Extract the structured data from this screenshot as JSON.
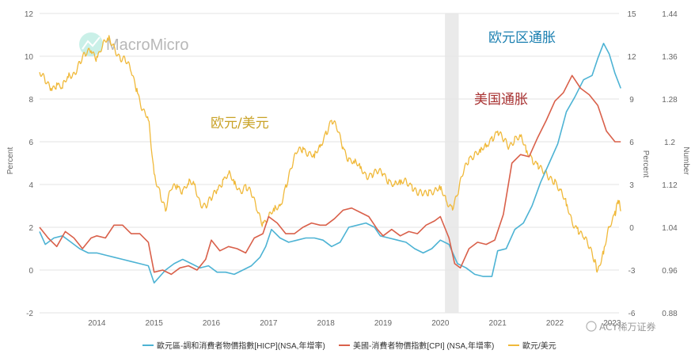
{
  "watermark": "MacroMicro",
  "corner_brand": "ACY稀万证券",
  "chart_data": {
    "type": "line",
    "x_ticks": [
      "2014",
      "2015",
      "2016",
      "2017",
      "2018",
      "2019",
      "2020",
      "2021",
      "2022",
      "2023"
    ],
    "axes": {
      "left": {
        "label": "Percent",
        "ticks": [
          12,
          10,
          8,
          6,
          4,
          2,
          0,
          -2
        ],
        "range": [
          -2,
          12
        ]
      },
      "right1": {
        "label": "Percent",
        "ticks": [
          15,
          12,
          9,
          6,
          3,
          0,
          -3,
          -6
        ],
        "range": [
          -6,
          15
        ]
      },
      "right2": {
        "label": "Number",
        "ticks": [
          "1.44",
          "1.36",
          "1.28",
          "1.2",
          "1.12",
          "1.04",
          "0.96",
          "0.88"
        ],
        "range": [
          0.88,
          1.44
        ]
      }
    },
    "shaded_period": [
      "2020.08",
      "2020.32"
    ],
    "annotations": [
      {
        "text": "欧元区通胀",
        "color": "#1a7fb0"
      },
      {
        "text": "美国通胀",
        "color": "#a83232"
      },
      {
        "text": "欧元/美元",
        "color": "#c9a227"
      }
    ],
    "series": [
      {
        "name": "歐元區-調和消費者物價指數[HICP](NSA,年增率)",
        "axis": "left",
        "color": "#4db3d4",
        "points": [
          [
            2013.0,
            1.8
          ],
          [
            2013.1,
            1.2
          ],
          [
            2013.25,
            1.5
          ],
          [
            2013.4,
            1.6
          ],
          [
            2013.55,
            1.3
          ],
          [
            2013.7,
            1.0
          ],
          [
            2013.85,
            0.8
          ],
          [
            2014.0,
            0.8
          ],
          [
            2014.15,
            0.7
          ],
          [
            2014.3,
            0.6
          ],
          [
            2014.45,
            0.5
          ],
          [
            2014.6,
            0.4
          ],
          [
            2014.75,
            0.3
          ],
          [
            2014.9,
            0.2
          ],
          [
            2015.0,
            -0.6
          ],
          [
            2015.2,
            0.0
          ],
          [
            2015.35,
            0.3
          ],
          [
            2015.5,
            0.5
          ],
          [
            2015.65,
            0.3
          ],
          [
            2015.8,
            0.1
          ],
          [
            2015.95,
            0.2
          ],
          [
            2016.1,
            -0.1
          ],
          [
            2016.25,
            -0.1
          ],
          [
            2016.4,
            -0.2
          ],
          [
            2016.55,
            0.0
          ],
          [
            2016.7,
            0.2
          ],
          [
            2016.85,
            0.6
          ],
          [
            2016.95,
            1.1
          ],
          [
            2017.05,
            1.9
          ],
          [
            2017.2,
            1.5
          ],
          [
            2017.35,
            1.3
          ],
          [
            2017.5,
            1.4
          ],
          [
            2017.65,
            1.5
          ],
          [
            2017.8,
            1.5
          ],
          [
            2017.95,
            1.4
          ],
          [
            2018.1,
            1.1
          ],
          [
            2018.25,
            1.3
          ],
          [
            2018.4,
            2.0
          ],
          [
            2018.55,
            2.1
          ],
          [
            2018.7,
            2.2
          ],
          [
            2018.85,
            2.0
          ],
          [
            2018.95,
            1.6
          ],
          [
            2019.1,
            1.5
          ],
          [
            2019.25,
            1.4
          ],
          [
            2019.4,
            1.3
          ],
          [
            2019.55,
            1.0
          ],
          [
            2019.7,
            0.8
          ],
          [
            2019.85,
            1.0
          ],
          [
            2020.0,
            1.4
          ],
          [
            2020.15,
            1.2
          ],
          [
            2020.3,
            0.3
          ],
          [
            2020.45,
            0.1
          ],
          [
            2020.6,
            -0.2
          ],
          [
            2020.75,
            -0.3
          ],
          [
            2020.9,
            -0.3
          ],
          [
            2021.0,
            0.9
          ],
          [
            2021.15,
            1.0
          ],
          [
            2021.3,
            1.9
          ],
          [
            2021.45,
            2.2
          ],
          [
            2021.6,
            3.0
          ],
          [
            2021.75,
            4.1
          ],
          [
            2021.9,
            5.0
          ],
          [
            2022.05,
            5.9
          ],
          [
            2022.2,
            7.4
          ],
          [
            2022.35,
            8.1
          ],
          [
            2022.5,
            8.9
          ],
          [
            2022.65,
            9.1
          ],
          [
            2022.75,
            9.9
          ],
          [
            2022.85,
            10.6
          ],
          [
            2022.95,
            10.1
          ],
          [
            2023.05,
            9.2
          ],
          [
            2023.15,
            8.5
          ]
        ]
      },
      {
        "name": "美國-消費者物價指數[CPI] (NSA,年增率)",
        "axis": "left",
        "color": "#d9604a",
        "points": [
          [
            2013.0,
            2.0
          ],
          [
            2013.15,
            1.5
          ],
          [
            2013.3,
            1.1
          ],
          [
            2013.45,
            1.8
          ],
          [
            2013.6,
            1.5
          ],
          [
            2013.75,
            1.0
          ],
          [
            2013.9,
            1.5
          ],
          [
            2014.0,
            1.6
          ],
          [
            2014.15,
            1.5
          ],
          [
            2014.3,
            2.1
          ],
          [
            2014.45,
            2.1
          ],
          [
            2014.6,
            1.7
          ],
          [
            2014.75,
            1.7
          ],
          [
            2014.9,
            1.3
          ],
          [
            2015.0,
            -0.1
          ],
          [
            2015.15,
            0.0
          ],
          [
            2015.3,
            -0.2
          ],
          [
            2015.45,
            0.1
          ],
          [
            2015.6,
            0.2
          ],
          [
            2015.75,
            0.0
          ],
          [
            2015.9,
            0.5
          ],
          [
            2016.0,
            1.4
          ],
          [
            2016.15,
            0.9
          ],
          [
            2016.3,
            1.1
          ],
          [
            2016.45,
            1.0
          ],
          [
            2016.6,
            0.8
          ],
          [
            2016.75,
            1.5
          ],
          [
            2016.9,
            1.7
          ],
          [
            2017.0,
            2.5
          ],
          [
            2017.15,
            2.2
          ],
          [
            2017.3,
            1.7
          ],
          [
            2017.45,
            1.7
          ],
          [
            2017.6,
            2.0
          ],
          [
            2017.75,
            2.2
          ],
          [
            2017.9,
            2.1
          ],
          [
            2018.0,
            2.1
          ],
          [
            2018.15,
            2.4
          ],
          [
            2018.3,
            2.8
          ],
          [
            2018.45,
            2.9
          ],
          [
            2018.6,
            2.7
          ],
          [
            2018.75,
            2.5
          ],
          [
            2018.9,
            1.9
          ],
          [
            2019.0,
            1.6
          ],
          [
            2019.15,
            1.9
          ],
          [
            2019.3,
            1.6
          ],
          [
            2019.45,
            1.8
          ],
          [
            2019.6,
            1.7
          ],
          [
            2019.75,
            2.1
          ],
          [
            2019.9,
            2.3
          ],
          [
            2020.0,
            2.5
          ],
          [
            2020.15,
            1.5
          ],
          [
            2020.25,
            0.3
          ],
          [
            2020.35,
            0.1
          ],
          [
            2020.5,
            1.0
          ],
          [
            2020.65,
            1.3
          ],
          [
            2020.8,
            1.2
          ],
          [
            2020.95,
            1.4
          ],
          [
            2021.1,
            2.6
          ],
          [
            2021.25,
            5.0
          ],
          [
            2021.4,
            5.4
          ],
          [
            2021.55,
            5.3
          ],
          [
            2021.7,
            6.2
          ],
          [
            2021.85,
            7.0
          ],
          [
            2022.0,
            7.9
          ],
          [
            2022.15,
            8.3
          ],
          [
            2022.3,
            9.1
          ],
          [
            2022.45,
            8.5
          ],
          [
            2022.6,
            8.2
          ],
          [
            2022.75,
            7.7
          ],
          [
            2022.9,
            6.5
          ],
          [
            2023.05,
            6.0
          ],
          [
            2023.15,
            6.0
          ]
        ]
      },
      {
        "name": "歐元/美元",
        "axis": "right2",
        "color": "#f0b93a",
        "points": [
          [
            2013.0,
            1.33
          ],
          [
            2013.1,
            1.31
          ],
          [
            2013.2,
            1.3
          ],
          [
            2013.3,
            1.31
          ],
          [
            2013.4,
            1.3
          ],
          [
            2013.5,
            1.32
          ],
          [
            2013.6,
            1.33
          ],
          [
            2013.7,
            1.35
          ],
          [
            2013.8,
            1.36
          ],
          [
            2013.9,
            1.37
          ],
          [
            2014.0,
            1.36
          ],
          [
            2014.1,
            1.38
          ],
          [
            2014.2,
            1.39
          ],
          [
            2014.3,
            1.38
          ],
          [
            2014.4,
            1.36
          ],
          [
            2014.5,
            1.35
          ],
          [
            2014.6,
            1.33
          ],
          [
            2014.7,
            1.3
          ],
          [
            2014.8,
            1.26
          ],
          [
            2014.9,
            1.24
          ],
          [
            2015.0,
            1.14
          ],
          [
            2015.1,
            1.11
          ],
          [
            2015.2,
            1.07
          ],
          [
            2015.3,
            1.11
          ],
          [
            2015.4,
            1.12
          ],
          [
            2015.5,
            1.11
          ],
          [
            2015.6,
            1.12
          ],
          [
            2015.7,
            1.12
          ],
          [
            2015.8,
            1.09
          ],
          [
            2015.9,
            1.08
          ],
          [
            2016.0,
            1.09
          ],
          [
            2016.1,
            1.11
          ],
          [
            2016.2,
            1.13
          ],
          [
            2016.3,
            1.14
          ],
          [
            2016.4,
            1.12
          ],
          [
            2016.5,
            1.11
          ],
          [
            2016.6,
            1.12
          ],
          [
            2016.7,
            1.1
          ],
          [
            2016.8,
            1.07
          ],
          [
            2016.9,
            1.05
          ],
          [
            2017.0,
            1.06
          ],
          [
            2017.1,
            1.07
          ],
          [
            2017.2,
            1.08
          ],
          [
            2017.3,
            1.12
          ],
          [
            2017.4,
            1.15
          ],
          [
            2017.5,
            1.18
          ],
          [
            2017.6,
            1.19
          ],
          [
            2017.7,
            1.18
          ],
          [
            2017.8,
            1.17
          ],
          [
            2017.9,
            1.19
          ],
          [
            2018.0,
            1.22
          ],
          [
            2018.1,
            1.24
          ],
          [
            2018.2,
            1.22
          ],
          [
            2018.3,
            1.19
          ],
          [
            2018.4,
            1.17
          ],
          [
            2018.5,
            1.16
          ],
          [
            2018.6,
            1.15
          ],
          [
            2018.7,
            1.14
          ],
          [
            2018.8,
            1.14
          ],
          [
            2018.9,
            1.14
          ],
          [
            2019.0,
            1.14
          ],
          [
            2019.1,
            1.13
          ],
          [
            2019.2,
            1.12
          ],
          [
            2019.3,
            1.12
          ],
          [
            2019.4,
            1.13
          ],
          [
            2019.5,
            1.12
          ],
          [
            2019.6,
            1.1
          ],
          [
            2019.7,
            1.1
          ],
          [
            2019.8,
            1.11
          ],
          [
            2019.9,
            1.11
          ],
          [
            2020.0,
            1.11
          ],
          [
            2020.1,
            1.09
          ],
          [
            2020.2,
            1.08
          ],
          [
            2020.3,
            1.1
          ],
          [
            2020.4,
            1.14
          ],
          [
            2020.5,
            1.17
          ],
          [
            2020.6,
            1.18
          ],
          [
            2020.7,
            1.18
          ],
          [
            2020.8,
            1.19
          ],
          [
            2020.9,
            1.21
          ],
          [
            2021.0,
            1.22
          ],
          [
            2021.1,
            1.2
          ],
          [
            2021.2,
            1.19
          ],
          [
            2021.3,
            1.21
          ],
          [
            2021.4,
            1.21
          ],
          [
            2021.5,
            1.18
          ],
          [
            2021.6,
            1.17
          ],
          [
            2021.7,
            1.16
          ],
          [
            2021.8,
            1.14
          ],
          [
            2021.9,
            1.13
          ],
          [
            2022.0,
            1.13
          ],
          [
            2022.1,
            1.11
          ],
          [
            2022.2,
            1.08
          ],
          [
            2022.3,
            1.05
          ],
          [
            2022.4,
            1.04
          ],
          [
            2022.5,
            1.02
          ],
          [
            2022.6,
            1.0
          ],
          [
            2022.7,
            0.98
          ],
          [
            2022.75,
            0.96
          ],
          [
            2022.85,
            0.99
          ],
          [
            2022.95,
            1.04
          ],
          [
            2023.05,
            1.07
          ],
          [
            2023.1,
            1.09
          ],
          [
            2023.15,
            1.07
          ]
        ]
      }
    ]
  }
}
